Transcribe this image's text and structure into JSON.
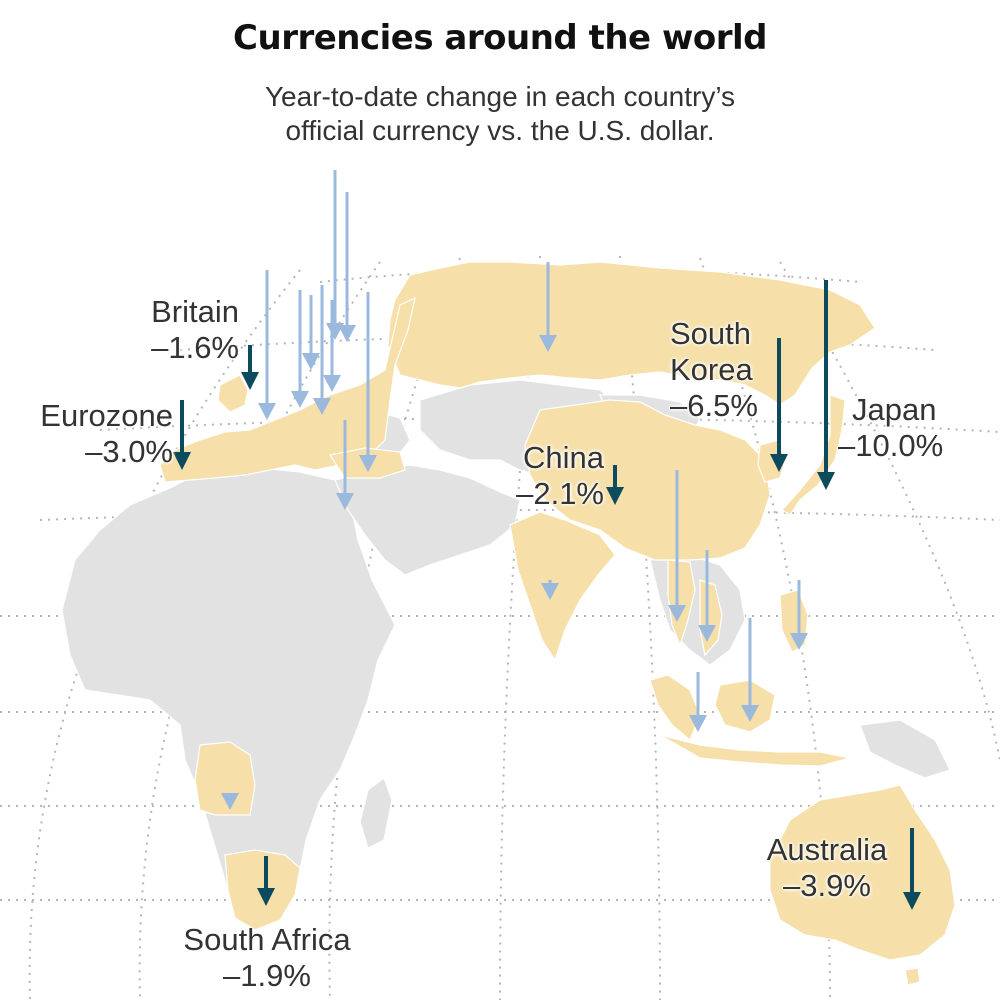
{
  "title": "Currencies around the world",
  "subtitle": [
    "Year-to-date change in each country’s",
    "official currency vs. the U.S. dollar."
  ],
  "colors": {
    "highlight_land": "#f6dfa8",
    "other_land": "#e2e2e2",
    "border": "#ffffff",
    "graticule": "#b5b5b5",
    "major_arrow": "#0c4a5e",
    "minor_arrow": "#9bb9dd",
    "label_text": "#333333"
  },
  "labels": {
    "britain": {
      "name": "Britain",
      "value": "–1.6%"
    },
    "eurozone": {
      "name": "Eurozone",
      "value": "–3.0%"
    },
    "china": {
      "name": "China",
      "value": "–2.1%"
    },
    "south_korea": {
      "name_line1": "South",
      "name_line2": "Korea",
      "value": "–6.5%"
    },
    "japan": {
      "name": "Japan",
      "value": "–10.0%"
    },
    "australia": {
      "name": "Australia",
      "value": "–3.9%"
    },
    "south_africa": {
      "name": "South Africa",
      "value": "–1.9%"
    }
  },
  "map_data": {
    "labeled_currencies": [
      {
        "name": "Britain",
        "change_pct": -1.6
      },
      {
        "name": "Eurozone",
        "change_pct": -3.0
      },
      {
        "name": "China",
        "change_pct": -2.1
      },
      {
        "name": "South Korea",
        "change_pct": -6.5
      },
      {
        "name": "Japan",
        "change_pct": -10.0
      },
      {
        "name": "Australia",
        "change_pct": -3.9
      },
      {
        "name": "South Africa",
        "change_pct": -1.9
      }
    ]
  }
}
